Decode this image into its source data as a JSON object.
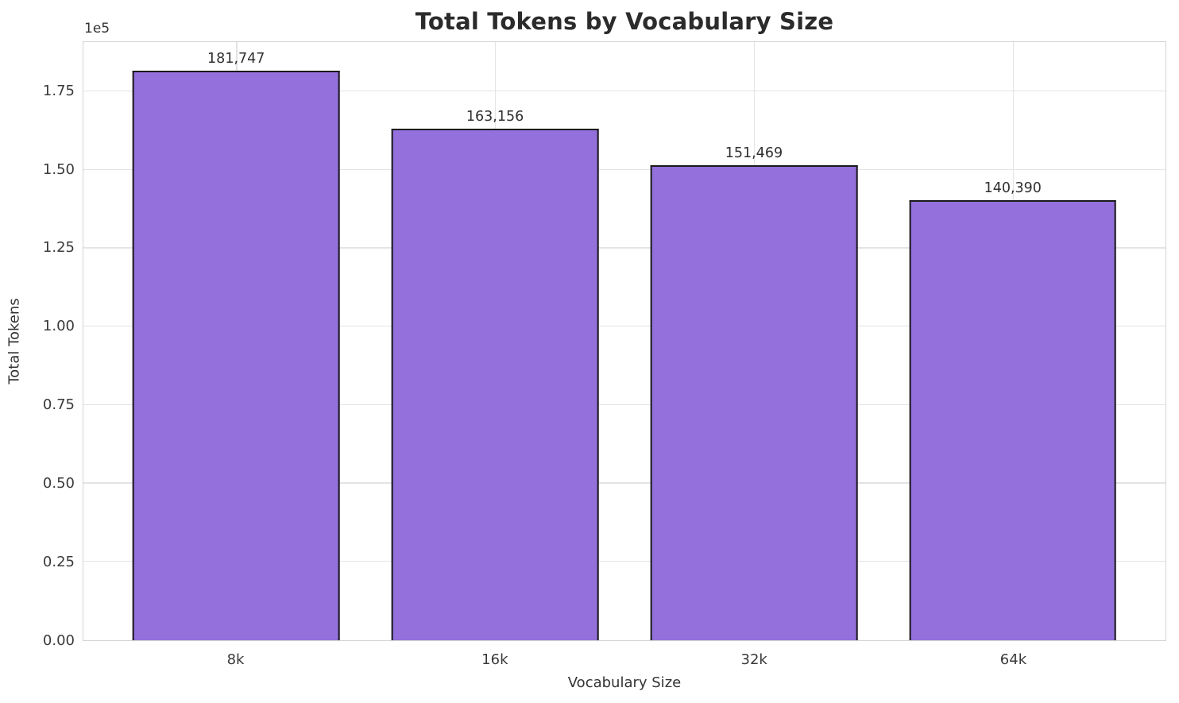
{
  "chart_data": {
    "type": "bar",
    "title": "Total Tokens by Vocabulary Size",
    "xlabel": "Vocabulary Size",
    "ylabel": "Total Tokens",
    "y_offset_text": "1e5",
    "categories": [
      "8k",
      "16k",
      "32k",
      "64k"
    ],
    "values": [
      181747,
      163156,
      151469,
      140390
    ],
    "value_labels": [
      "181,747",
      "163,156",
      "151,469",
      "140,390"
    ],
    "series_name": "Total Tokens",
    "bar_color": "#9370DB",
    "bar_edge_color": "#1a1a1a",
    "grid": true,
    "grid_color": "#e4e4e6",
    "legend": "none",
    "ylim": [
      0,
      190834
    ],
    "yticks": [
      {
        "label": "0.00",
        "value": 0
      },
      {
        "label": "0.25",
        "value": 25000
      },
      {
        "label": "0.50",
        "value": 50000
      },
      {
        "label": "0.75",
        "value": 75000
      },
      {
        "label": "1.00",
        "value": 100000
      },
      {
        "label": "1.25",
        "value": 125000
      },
      {
        "label": "1.50",
        "value": 150000
      },
      {
        "label": "1.75",
        "value": 175000
      }
    ]
  }
}
